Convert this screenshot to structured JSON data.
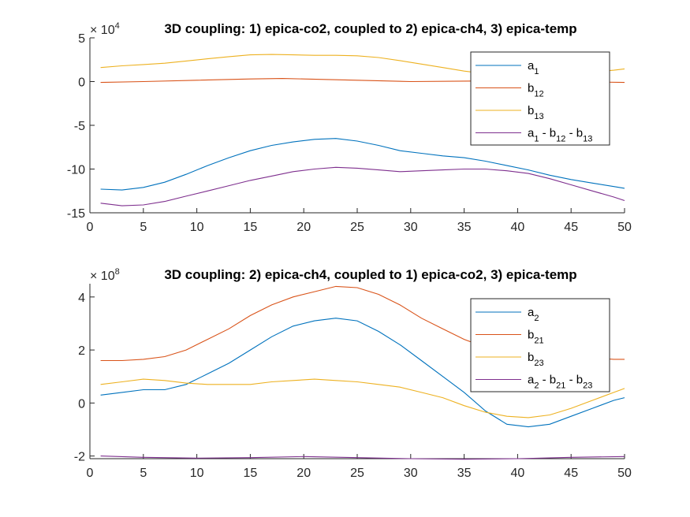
{
  "chart_data": [
    {
      "type": "line",
      "title": "3D coupling: 1) epica-co2, coupled to 2) epica-ch4, 3) epica-temp",
      "exponent_base": "× 10",
      "exponent_power": "4",
      "xlim": [
        0,
        50
      ],
      "ylim": [
        -15,
        5
      ],
      "xticks": [
        "0",
        "5",
        "10",
        "15",
        "20",
        "25",
        "30",
        "35",
        "40",
        "45",
        "50"
      ],
      "yticks": [
        "5",
        "0",
        "-5",
        "-10",
        "-15"
      ],
      "legend_placement": "top-right",
      "series": [
        {
          "name": "a",
          "sub": "1",
          "color": "#0072BD",
          "x": [
            1,
            3,
            5,
            7,
            9,
            11,
            13,
            15,
            17,
            19,
            21,
            23,
            25,
            27,
            29,
            31,
            33,
            35,
            37,
            39,
            41,
            43,
            45,
            47,
            49,
            50
          ],
          "y": [
            -12.3,
            -12.4,
            -12.1,
            -11.5,
            -10.6,
            -9.6,
            -8.7,
            -7.9,
            -7.3,
            -6.9,
            -6.6,
            -6.5,
            -6.8,
            -7.3,
            -7.9,
            -8.2,
            -8.5,
            -8.7,
            -9.1,
            -9.6,
            -10.1,
            -10.7,
            -11.2,
            -11.6,
            -12.0,
            -12.2
          ]
        },
        {
          "name": "b",
          "sub": "12",
          "color": "#D95319",
          "x": [
            1,
            5,
            10,
            15,
            18,
            20,
            25,
            30,
            35,
            40,
            45,
            50
          ],
          "y": [
            -0.1,
            0.0,
            0.15,
            0.3,
            0.35,
            0.3,
            0.15,
            0.0,
            0.05,
            0.1,
            0.0,
            -0.1
          ]
        },
        {
          "name": "b",
          "sub": "13",
          "color": "#EDB120",
          "x": [
            1,
            3,
            5,
            7,
            9,
            11,
            13,
            15,
            17,
            19,
            21,
            23,
            25,
            27,
            29,
            31,
            33,
            35,
            37,
            39,
            41,
            43,
            45,
            47,
            49,
            50
          ],
          "y": [
            1.6,
            1.8,
            1.95,
            2.1,
            2.35,
            2.6,
            2.85,
            3.05,
            3.1,
            3.05,
            3.0,
            3.0,
            2.95,
            2.75,
            2.4,
            2.0,
            1.6,
            1.2,
            0.9,
            0.75,
            0.7,
            0.8,
            0.95,
            1.1,
            1.3,
            1.45
          ]
        },
        {
          "name": "a - b - b",
          "label_parts": [
            [
              "a",
              ""
            ],
            [
              "1",
              "sub"
            ],
            [
              " - b",
              ""
            ],
            [
              "12",
              "sub"
            ],
            [
              " - b",
              ""
            ],
            [
              "13",
              "sub"
            ]
          ],
          "color": "#7E2F8E",
          "x": [
            1,
            3,
            5,
            7,
            9,
            11,
            13,
            15,
            17,
            19,
            21,
            23,
            25,
            27,
            29,
            31,
            33,
            35,
            37,
            39,
            41,
            43,
            45,
            47,
            49,
            50
          ],
          "y": [
            -13.9,
            -14.2,
            -14.1,
            -13.7,
            -13.1,
            -12.5,
            -11.9,
            -11.3,
            -10.8,
            -10.3,
            -10.0,
            -9.8,
            -9.9,
            -10.1,
            -10.3,
            -10.2,
            -10.1,
            -10.0,
            -10.0,
            -10.2,
            -10.5,
            -11.1,
            -11.8,
            -12.5,
            -13.2,
            -13.6
          ]
        }
      ]
    },
    {
      "type": "line",
      "title": "3D coupling: 2) epica-ch4, coupled to 1) epica-co2, 3) epica-temp",
      "exponent_base": "× 10",
      "exponent_power": "8",
      "xlim": [
        0,
        50
      ],
      "ylim": [
        -2.1,
        4.5
      ],
      "xticks": [
        "0",
        "5",
        "10",
        "15",
        "20",
        "25",
        "30",
        "35",
        "40",
        "45",
        "50"
      ],
      "yticks": [
        "4",
        "2",
        "0",
        "-2"
      ],
      "legend_placement": "top-right",
      "series": [
        {
          "name": "a",
          "sub": "2",
          "color": "#0072BD",
          "x": [
            1,
            3,
            5,
            7,
            9,
            11,
            13,
            15,
            17,
            19,
            21,
            23,
            25,
            27,
            29,
            31,
            33,
            35,
            37,
            39,
            41,
            43,
            45,
            47,
            49,
            50
          ],
          "y": [
            0.3,
            0.4,
            0.5,
            0.5,
            0.7,
            1.1,
            1.5,
            2.0,
            2.5,
            2.9,
            3.1,
            3.2,
            3.1,
            2.7,
            2.2,
            1.6,
            1.0,
            0.4,
            -0.3,
            -0.8,
            -0.9,
            -0.8,
            -0.5,
            -0.2,
            0.1,
            0.2
          ]
        },
        {
          "name": "b",
          "sub": "21",
          "color": "#D95319",
          "x": [
            1,
            3,
            5,
            7,
            9,
            11,
            13,
            15,
            17,
            19,
            21,
            23,
            25,
            27,
            29,
            31,
            33,
            35,
            37,
            39,
            41,
            43,
            45,
            47,
            49,
            50
          ],
          "y": [
            1.6,
            1.6,
            1.65,
            1.75,
            2.0,
            2.4,
            2.8,
            3.3,
            3.7,
            4.0,
            4.2,
            4.4,
            4.35,
            4.1,
            3.7,
            3.2,
            2.8,
            2.4,
            2.1,
            1.9,
            1.8,
            1.75,
            1.7,
            1.7,
            1.65,
            1.65
          ]
        },
        {
          "name": "b",
          "sub": "23",
          "color": "#EDB120",
          "x": [
            1,
            3,
            5,
            7,
            9,
            11,
            13,
            15,
            17,
            19,
            21,
            23,
            25,
            27,
            29,
            31,
            33,
            35,
            37,
            39,
            41,
            43,
            45,
            47,
            49,
            50
          ],
          "y": [
            0.7,
            0.8,
            0.9,
            0.85,
            0.75,
            0.7,
            0.7,
            0.7,
            0.8,
            0.85,
            0.9,
            0.85,
            0.8,
            0.7,
            0.6,
            0.4,
            0.2,
            -0.1,
            -0.35,
            -0.5,
            -0.55,
            -0.45,
            -0.2,
            0.1,
            0.4,
            0.55
          ]
        },
        {
          "name": "a - b - b",
          "label_parts": [
            [
              "a",
              ""
            ],
            [
              "2",
              "sub"
            ],
            [
              " - b",
              ""
            ],
            [
              "21",
              "sub"
            ],
            [
              " - b",
              ""
            ],
            [
              "23",
              "sub"
            ]
          ],
          "color": "#7E2F8E",
          "x": [
            1,
            5,
            10,
            15,
            20,
            25,
            30,
            35,
            40,
            45,
            50
          ],
          "y": [
            -2.0,
            -2.05,
            -2.08,
            -2.06,
            -2.02,
            -2.06,
            -2.1,
            -2.12,
            -2.1,
            -2.05,
            -2.02
          ]
        }
      ]
    }
  ]
}
